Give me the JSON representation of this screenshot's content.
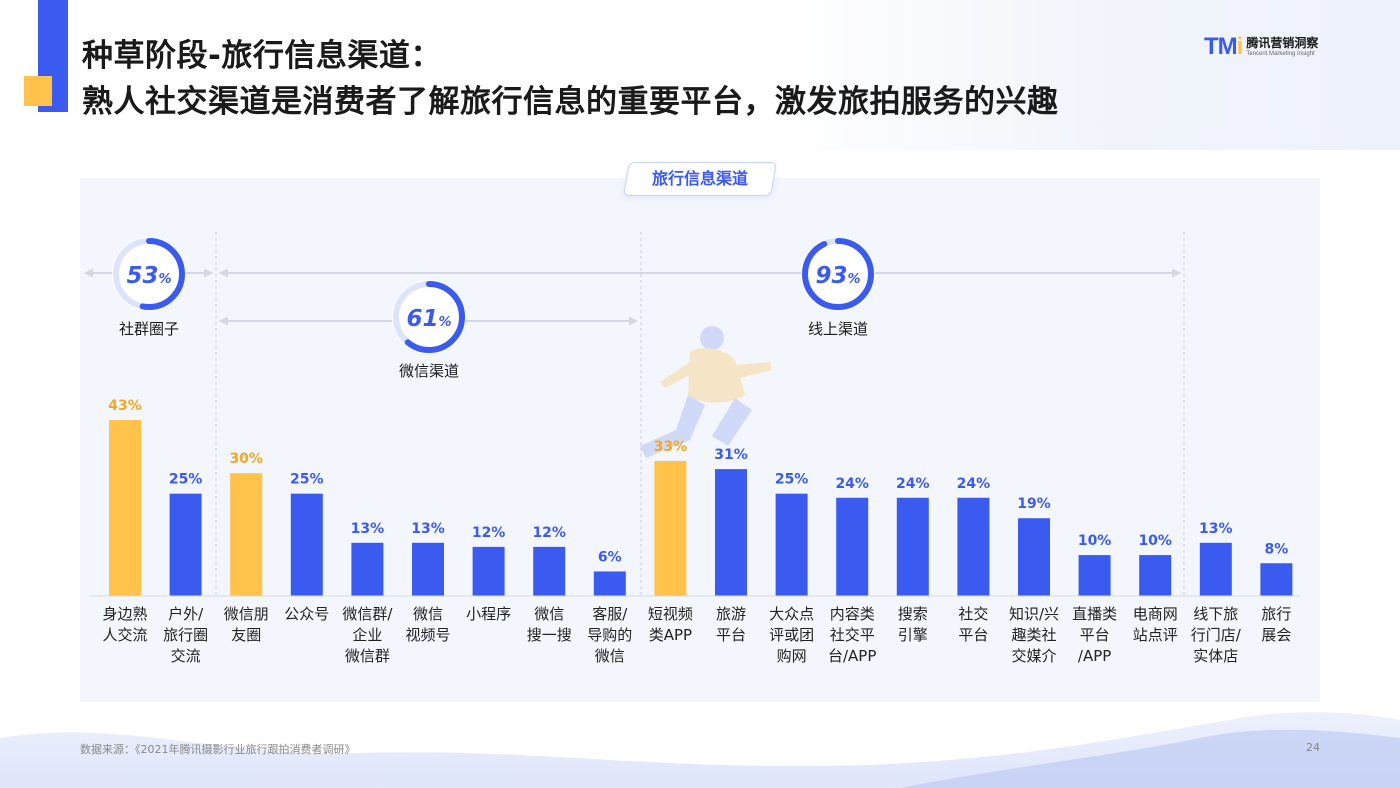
{
  "header": {
    "title_line1": "种草阶段-旅行信息渠道：",
    "title_line2": "熟人社交渠道是消费者了解旅行信息的重要平台，激发旅拍服务的兴趣"
  },
  "logo": {
    "mark_main": "TM",
    "mark_dot": "i",
    "cn": "腾讯营销洞察",
    "en": "Tencent Marketing Insight"
  },
  "panel_label": "旅行信息渠道",
  "groups": [
    {
      "name": "社群圈子",
      "percent": 53,
      "pct_symbol": "%"
    },
    {
      "name": "微信渠道",
      "percent": 61,
      "pct_symbol": "%"
    },
    {
      "name": "线上渠道",
      "percent": 93,
      "pct_symbol": "%"
    }
  ],
  "colors": {
    "blue": "#3b5bf0",
    "yellow": "#ffc24b",
    "label_yellow": "#f5a623",
    "ring_track": "#dde3fb"
  },
  "chart_data": {
    "type": "bar",
    "categories": [
      [
        "身边熟",
        "人交流"
      ],
      [
        "户外/",
        "旅行圈",
        "交流"
      ],
      [
        "微信朋",
        "友圈"
      ],
      [
        "公众号"
      ],
      [
        "微信群/",
        "企业",
        "微信群"
      ],
      [
        "微信",
        "视频号"
      ],
      [
        "小程序"
      ],
      [
        "微信",
        "搜一搜"
      ],
      [
        "客服/",
        "导购的",
        "微信"
      ],
      [
        "短视频",
        "类APP"
      ],
      [
        "旅游",
        "平台"
      ],
      [
        "大众点",
        "评或团",
        "购网"
      ],
      [
        "内容类",
        "社交平",
        "台/APP"
      ],
      [
        "搜索",
        "引擎"
      ],
      [
        "社交",
        "平台"
      ],
      [
        "知识/兴",
        "趣类社",
        "交媒介"
      ],
      [
        "直播类",
        "平台",
        "/APP"
      ],
      [
        "电商网",
        "站点评"
      ],
      [
        "线下旅",
        "行门店/",
        "实体店"
      ],
      [
        "旅行",
        "展会"
      ]
    ],
    "values": [
      43,
      25,
      30,
      25,
      13,
      13,
      12,
      12,
      6,
      33,
      31,
      25,
      24,
      24,
      24,
      19,
      10,
      10,
      13,
      8
    ],
    "value_labels": [
      "43%",
      "25%",
      "30%",
      "25%",
      "13%",
      "13%",
      "12%",
      "12%",
      "6%",
      "33%",
      "31%",
      "25%",
      "24%",
      "24%",
      "24%",
      "19%",
      "10%",
      "10%",
      "13%",
      "8%"
    ],
    "highlight": [
      true,
      false,
      true,
      false,
      false,
      false,
      false,
      false,
      false,
      true,
      false,
      false,
      false,
      false,
      false,
      false,
      false,
      false,
      false,
      false
    ],
    "ylim": [
      0,
      43
    ]
  },
  "footer": {
    "source": "数据来源：《2021年腾讯摄影行业旅行跟拍消费者调研》",
    "page": "24"
  }
}
